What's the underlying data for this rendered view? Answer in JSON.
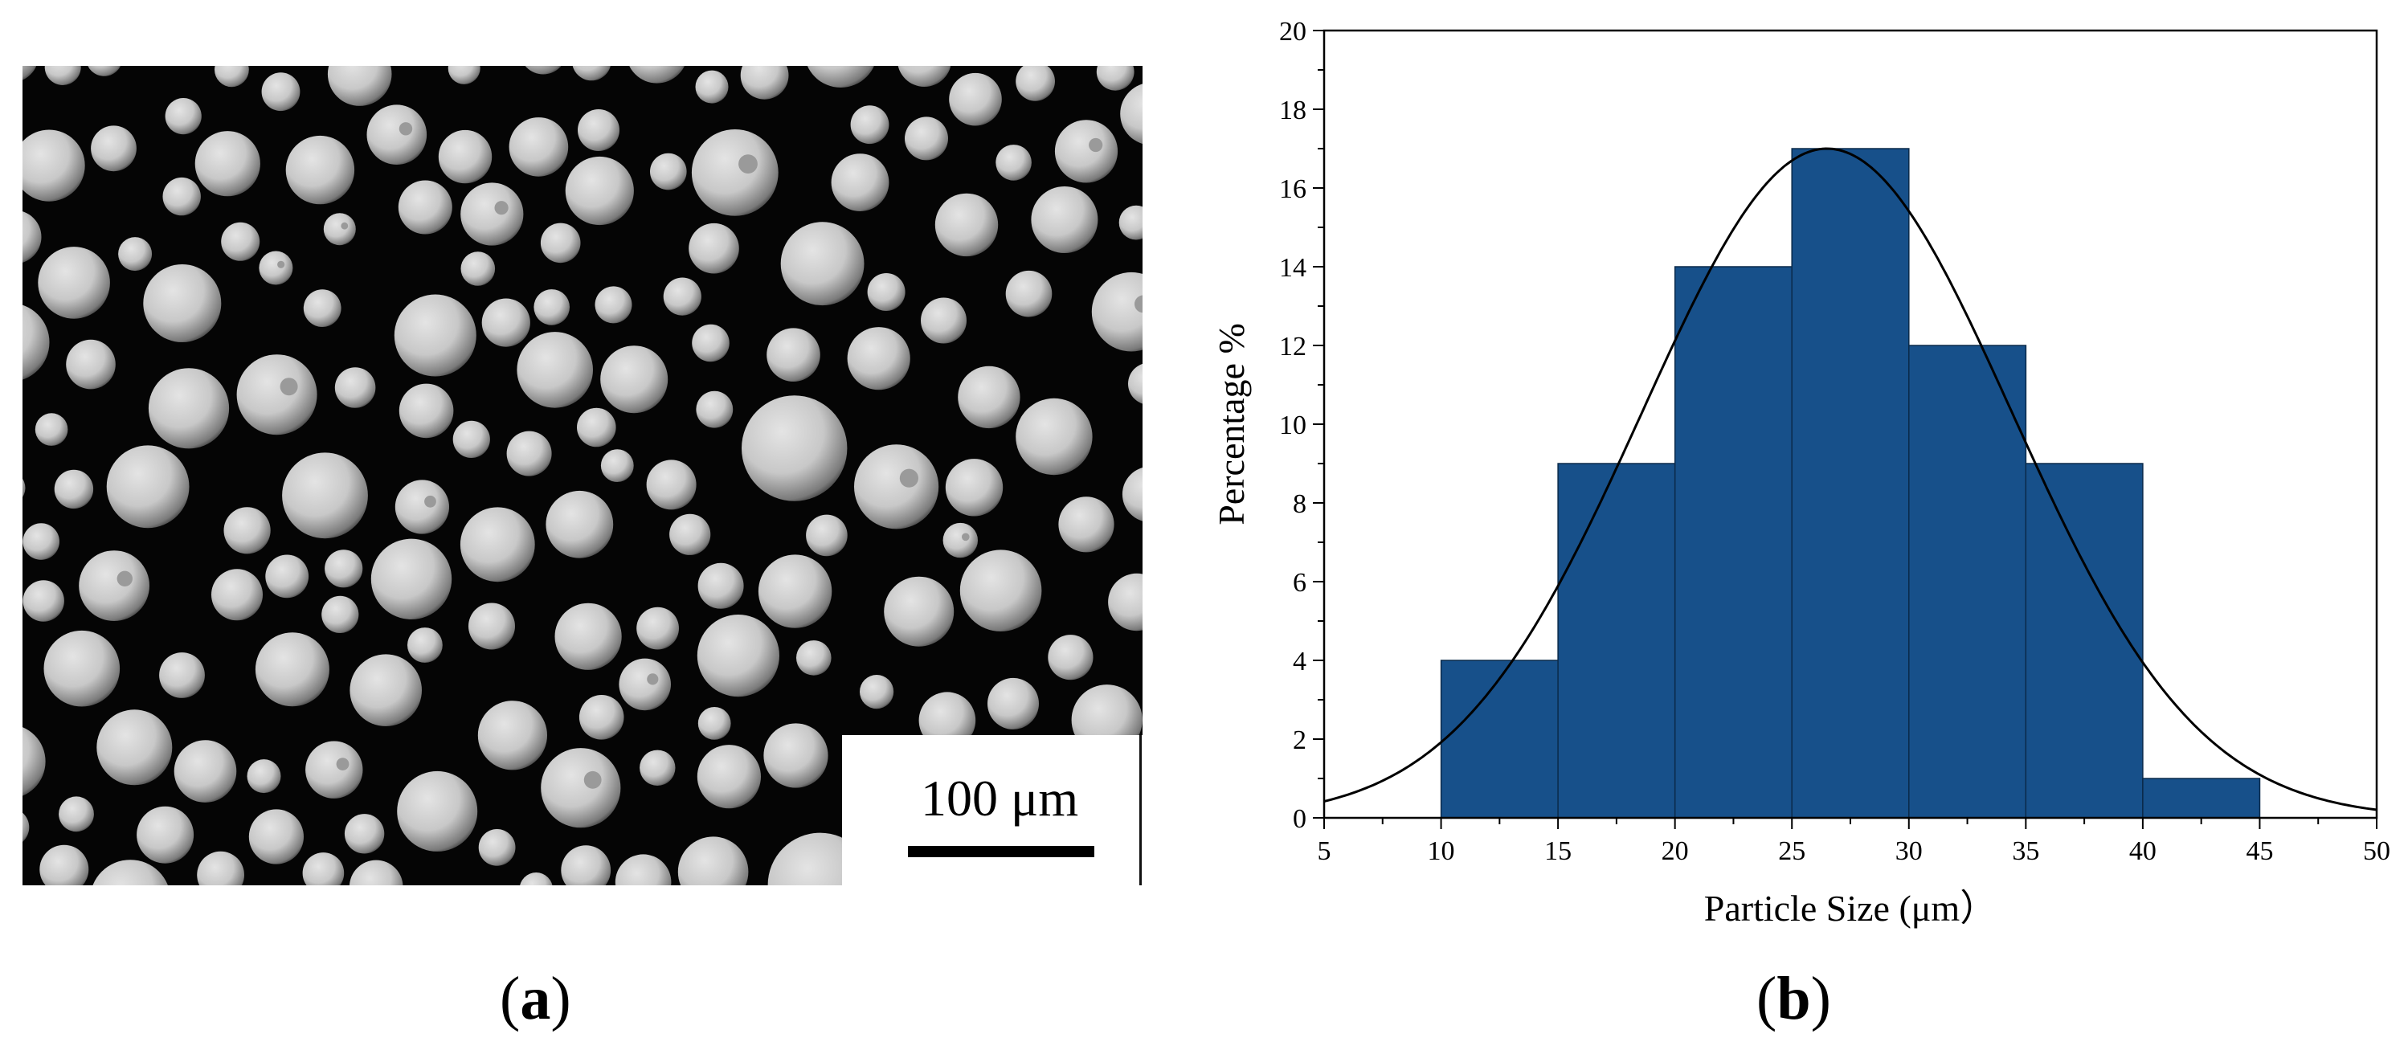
{
  "panel_a": {
    "label": "a",
    "scale_bar_label": "100 μm",
    "background_color": "#050505",
    "particle_color": "#c8c8c8"
  },
  "panel_b": {
    "label": "b"
  },
  "chart_data": {
    "type": "bar",
    "subtype": "histogram with normal fit curve",
    "bins": [
      {
        "start": 10,
        "end": 15,
        "value": 4
      },
      {
        "start": 15,
        "end": 20,
        "value": 9
      },
      {
        "start": 20,
        "end": 25,
        "value": 14
      },
      {
        "start": 25,
        "end": 30,
        "value": 17
      },
      {
        "start": 30,
        "end": 35,
        "value": 12
      },
      {
        "start": 35,
        "end": 40,
        "value": 9
      },
      {
        "start": 40,
        "end": 45,
        "value": 1
      }
    ],
    "fit_curve": {
      "type": "normal",
      "mean": 26.5,
      "sd": 7.9,
      "peak": 17
    },
    "xlabel": "Particle Size (μm）",
    "ylabel": "Percentage %",
    "xlim": [
      5,
      50
    ],
    "ylim": [
      0,
      20
    ],
    "xticks": [
      5,
      10,
      15,
      20,
      25,
      30,
      35,
      40,
      45,
      50
    ],
    "yticks": [
      0,
      2,
      4,
      6,
      8,
      10,
      12,
      14,
      16,
      18,
      20
    ],
    "bar_color": "#17508a",
    "bar_edge_color": "#0b2a4a",
    "curve_color": "#000000",
    "grid": false,
    "legend": "none"
  }
}
